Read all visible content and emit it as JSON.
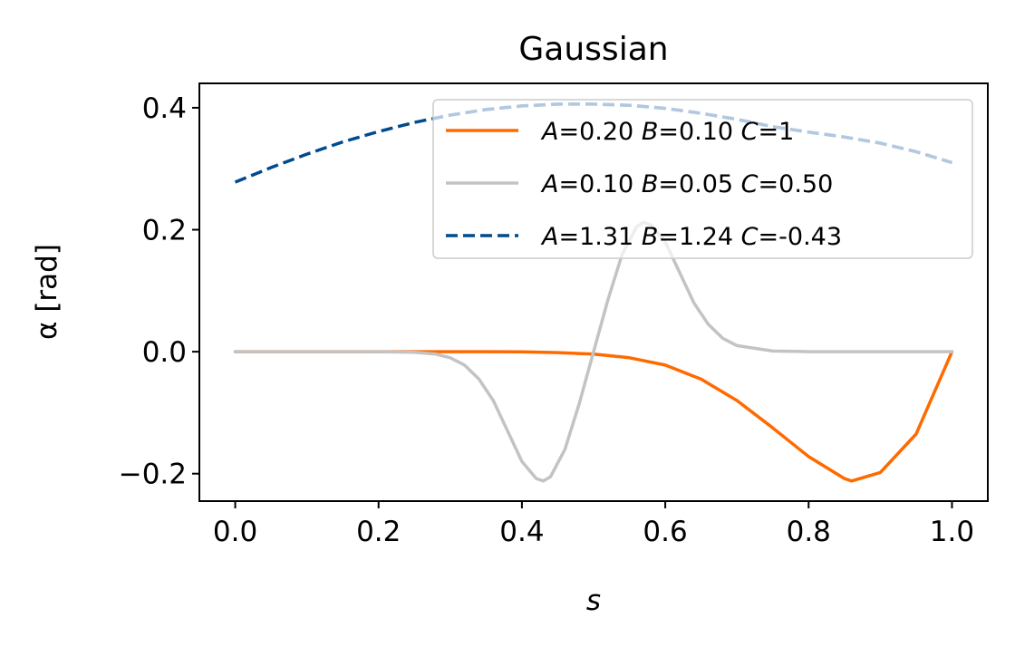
{
  "chart_data": {
    "type": "line",
    "title": "Gaussian",
    "xlabel": "s",
    "ylabel": "α [rad]",
    "xlim": [
      -0.05,
      1.05
    ],
    "ylim": [
      -0.245,
      0.44
    ],
    "xticks": [
      0.0,
      0.2,
      0.4,
      0.6,
      0.8,
      1.0
    ],
    "xtick_labels": [
      "0.0",
      "0.2",
      "0.4",
      "0.6",
      "0.8",
      "1.0"
    ],
    "yticks": [
      -0.2,
      0.0,
      0.2,
      0.4
    ],
    "ytick_labels": [
      "−0.2",
      "0.0",
      "0.2",
      "0.4"
    ],
    "grid": false,
    "legend_position": "top-right",
    "series": [
      {
        "name": "A=0.20 B=0.10 C=1",
        "legend": [
          {
            "v": "A"
          },
          {
            "t": "=0.20 "
          },
          {
            "v": "B"
          },
          {
            "t": "=0.10 "
          },
          {
            "v": "C"
          },
          {
            "t": "=1"
          }
        ],
        "color": "#ff6a00",
        "dash": "solid",
        "x": [
          0.0,
          0.05,
          0.1,
          0.15,
          0.2,
          0.25,
          0.3,
          0.35,
          0.4,
          0.45,
          0.5,
          0.55,
          0.6,
          0.65,
          0.7,
          0.75,
          0.8,
          0.85,
          0.86,
          0.9,
          0.95,
          1.0
        ],
        "y": [
          0.0,
          0.0,
          0.0,
          0.0,
          0.0,
          0.0,
          0.0,
          0.0,
          -0.0003,
          -0.0015,
          -0.004,
          -0.01,
          -0.022,
          -0.045,
          -0.08,
          -0.125,
          -0.172,
          -0.208,
          -0.212,
          -0.198,
          -0.135,
          0.0
        ]
      },
      {
        "name": "A=0.10 B=0.05 C=0.50",
        "legend": [
          {
            "v": "A"
          },
          {
            "t": "=0.10 "
          },
          {
            "v": "B"
          },
          {
            "t": "=0.05 "
          },
          {
            "v": "C"
          },
          {
            "t": "=0.50"
          }
        ],
        "color": "#c3c3c3",
        "dash": "solid",
        "x": [
          0.0,
          0.1,
          0.2,
          0.25,
          0.28,
          0.3,
          0.32,
          0.34,
          0.36,
          0.38,
          0.4,
          0.42,
          0.43,
          0.44,
          0.46,
          0.48,
          0.5,
          0.52,
          0.54,
          0.56,
          0.57,
          0.58,
          0.6,
          0.62,
          0.64,
          0.66,
          0.68,
          0.7,
          0.75,
          0.8,
          0.9,
          1.0
        ],
        "y": [
          0.0,
          0.0,
          0.0,
          -0.001,
          -0.004,
          -0.01,
          -0.022,
          -0.045,
          -0.08,
          -0.13,
          -0.18,
          -0.208,
          -0.212,
          -0.205,
          -0.16,
          -0.085,
          0.0,
          0.085,
          0.16,
          0.205,
          0.212,
          0.208,
          0.18,
          0.13,
          0.08,
          0.045,
          0.022,
          0.01,
          0.001,
          0.0,
          0.0,
          0.0
        ]
      },
      {
        "name": "A=1.31 B=1.24 C=-0.43",
        "legend": [
          {
            "v": "A"
          },
          {
            "t": "=1.31 "
          },
          {
            "v": "B"
          },
          {
            "t": "=1.24 "
          },
          {
            "v": "C"
          },
          {
            "t": "=-0.43"
          }
        ],
        "color": "#004a8f",
        "faded_color": "#b1c8e0",
        "dash": "dashed",
        "x": [
          0.0,
          0.05,
          0.1,
          0.15,
          0.2,
          0.25,
          0.3,
          0.35,
          0.4,
          0.45,
          0.5,
          0.55,
          0.6,
          0.65,
          0.7,
          0.75,
          0.8,
          0.85,
          0.9,
          0.95,
          1.0
        ],
        "y": [
          0.278,
          0.302,
          0.324,
          0.344,
          0.361,
          0.376,
          0.388,
          0.397,
          0.403,
          0.406,
          0.406,
          0.404,
          0.399,
          0.391,
          0.381,
          0.369,
          0.36,
          0.352,
          0.342,
          0.328,
          0.31
        ]
      }
    ]
  }
}
